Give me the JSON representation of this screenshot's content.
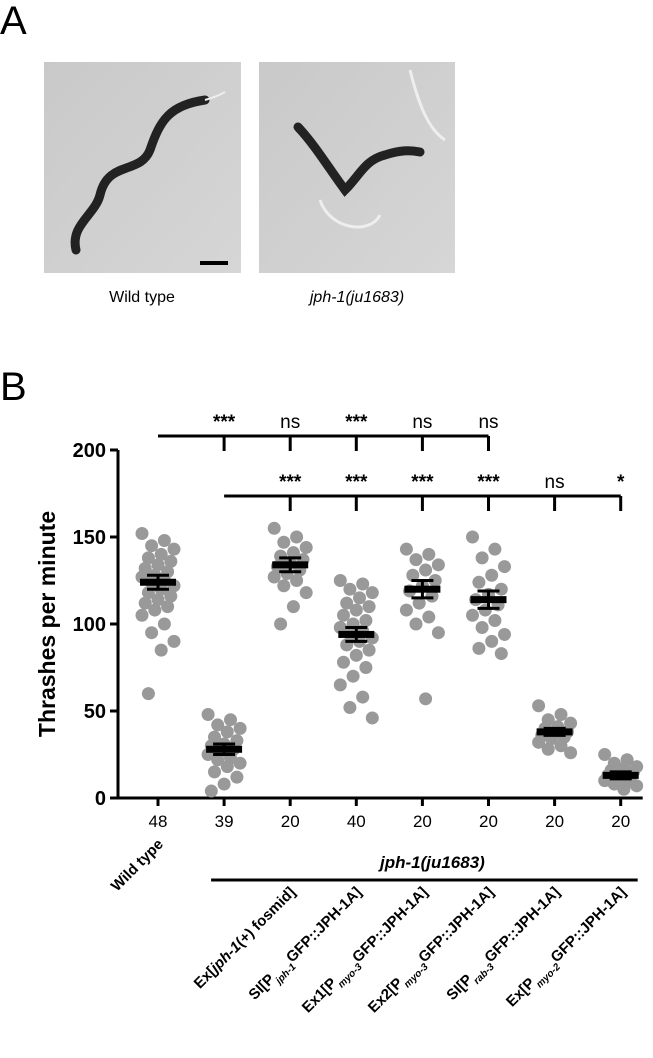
{
  "panel_labels": [
    "A",
    "B"
  ],
  "panel_a": {
    "captions": [
      "Wild type",
      "jph-1(ju1683)"
    ]
  },
  "chart_data": {
    "type": "strip",
    "ylabel": "Thrashes per minute",
    "ylim": [
      0,
      200
    ],
    "yticks": [
      0,
      50,
      100,
      150,
      200
    ],
    "categories": [
      "Wild type",
      null,
      [
        {
          "text": "Ex["
        },
        {
          "text": "jph-1",
          "style": "italic"
        },
        {
          "text": "(+) fosmid]"
        }
      ],
      [
        {
          "text": "SI[P"
        },
        {
          "text": "jph-1",
          "style": "sub"
        },
        {
          "text": "GFP::JPH-1A]"
        }
      ],
      [
        {
          "text": "Ex1[P"
        },
        {
          "text": "myo-3",
          "style": "sub"
        },
        {
          "text": "GFP::JPH-1A]"
        }
      ],
      [
        {
          "text": "Ex2[P"
        },
        {
          "text": "myo-3",
          "style": "sub"
        },
        {
          "text": "GFP::JPH-1A]"
        }
      ],
      [
        {
          "text": "SI[P"
        },
        {
          "text": "rab-3",
          "style": "sub"
        },
        {
          "text": "GFP::JPH-1A]"
        }
      ],
      [
        {
          "text": "Ex[P"
        },
        {
          "text": "myo-2",
          "style": "sub"
        },
        {
          "text": "GFP::JPH-1A]"
        }
      ]
    ],
    "group_label": "jph-1(ju1683)",
    "n": [
      48,
      39,
      20,
      40,
      20,
      20,
      20,
      20
    ],
    "means": [
      124,
      28,
      134,
      94,
      120,
      114,
      38,
      13
    ],
    "sems": [
      4,
      3,
      4,
      4,
      5,
      5,
      2,
      2
    ],
    "color": "#999999",
    "points": [
      [
        152,
        148,
        145,
        143,
        140,
        138,
        136,
        134,
        132,
        130,
        128,
        127,
        125,
        124,
        122,
        120,
        118,
        116,
        114,
        112,
        110,
        108,
        105,
        100,
        95,
        90,
        85,
        60
      ],
      [
        48,
        45,
        42,
        40,
        38,
        35,
        33,
        31,
        30,
        28,
        27,
        25,
        23,
        22,
        20,
        18,
        15,
        12,
        8,
        4
      ],
      [
        155,
        150,
        147,
        144,
        141,
        139,
        137,
        135,
        133,
        131,
        129,
        127,
        125,
        122,
        118,
        110,
        100
      ],
      [
        125,
        123,
        120,
        118,
        115,
        112,
        110,
        108,
        105,
        102,
        100,
        98,
        96,
        94,
        92,
        90,
        88,
        85,
        82,
        78,
        75,
        70,
        65,
        58,
        52,
        46
      ],
      [
        143,
        140,
        137,
        134,
        131,
        128,
        125,
        122,
        119,
        116,
        112,
        108,
        104,
        100,
        95,
        57
      ],
      [
        150,
        143,
        138,
        133,
        128,
        124,
        120,
        117,
        114,
        111,
        108,
        105,
        102,
        98,
        94,
        90,
        86,
        83
      ],
      [
        53,
        48,
        45,
        43,
        41,
        40,
        38,
        37,
        36,
        35,
        34,
        32,
        30,
        28,
        26
      ],
      [
        25,
        22,
        20,
        18,
        17,
        16,
        15,
        14,
        13,
        12,
        11,
        10,
        9,
        8,
        7,
        5
      ]
    ],
    "significance_rows": [
      [
        null,
        "***",
        "ns",
        "***",
        "ns",
        "ns",
        null,
        null
      ],
      [
        null,
        null,
        "***",
        "***",
        "***",
        "***",
        "ns",
        "*"
      ]
    ]
  }
}
